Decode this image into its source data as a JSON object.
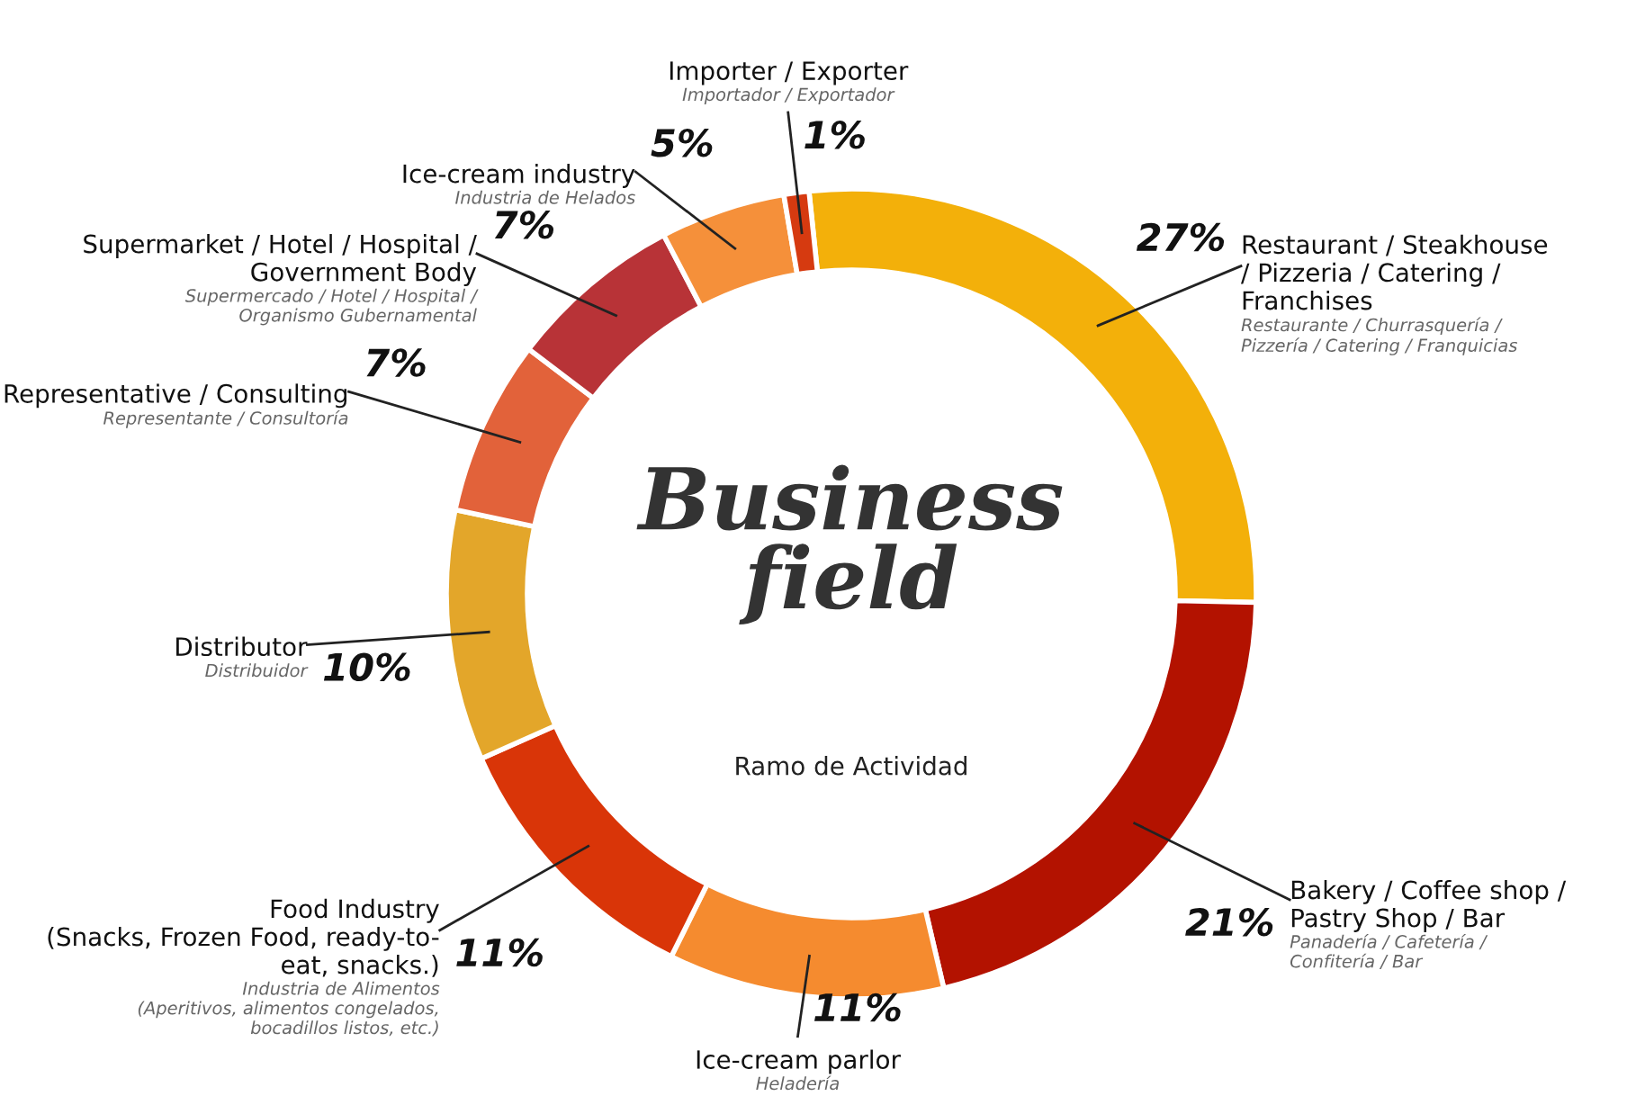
{
  "chart_data": {
    "type": "donut",
    "title": "Business\nfield",
    "subtitle": "Ramo de Actividad",
    "categories": [
      "Restaurant / Steakhouse\n/ Pizzeria / Catering /\nFranchises",
      "Bakery / Coffee shop /\nPastry Shop / Bar",
      "Ice-cream parlor",
      "Food Industry\n(Snacks, Frozen Food, ready-to-\neat, snacks.)",
      "Distributor",
      "Representative / Consulting",
      "Supermarket / Hotel / Hospital /\nGovernment Body",
      "Ice-cream industry",
      "Importer / Exporter"
    ],
    "values": [
      27,
      21,
      11,
      11,
      10,
      7,
      7,
      5,
      1
    ],
    "value_labels": [
      "27%",
      "21%",
      "11%",
      "11%",
      "10%",
      "7%",
      "7%",
      "5%",
      "1%"
    ],
    "colors": [
      "#f3b00a",
      "#b31200",
      "#f58b2f",
      "#d93508",
      "#e3a62a",
      "#e2623a",
      "#b83337",
      "#f5903a",
      "#d63a10"
    ],
    "annotations": [
      "Restaurante / Churrasquería /\nPizzería / Catering / Franquicias",
      "Panadería / Cafetería /\nConfitería / Bar",
      "Heladería",
      "Industria de Alimentos\n(Aperitivos, alimentos congelados,\nbocadillos listos, etc.)",
      "Distribuidor",
      "Representante / Consultoría",
      "Supermercado / Hotel / Hospital /\nOrganismo Gubernamental",
      "Industria de Helados",
      "Importador / Exportador"
    ],
    "legend": false
  }
}
